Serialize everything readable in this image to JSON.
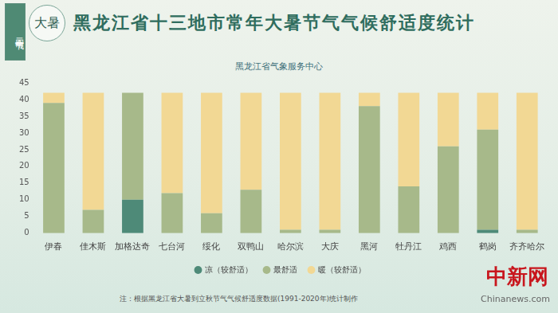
{
  "header": {
    "badge": "二十四节气",
    "season": "大暑",
    "source": "黑龙江省气象服务中心",
    "note": "注：根据黑龙江省大暑到立秋节气气候舒适度数据(1991-2020年)统计制作",
    "watermark": "中新网",
    "watermark_site": "Chinanews.com"
  },
  "chart_data": {
    "type": "bar",
    "title": "黑龙江省十三地市常年大暑节气气候舒适度统计",
    "categories": [
      "伊春",
      "佳木斯",
      "加格达奇",
      "七台河",
      "绥化",
      "双鸭山",
      "哈尔滨",
      "大庆",
      "黑河",
      "牡丹江",
      "鸡西",
      "鹤岗",
      "齐齐哈尔"
    ],
    "series": [
      {
        "name": "凉（较舒适）",
        "color": "#4e8a78",
        "values": [
          0,
          0,
          10,
          0,
          0,
          0,
          0,
          0,
          0,
          0,
          0,
          1,
          0
        ]
      },
      {
        "name": "最舒适",
        "color": "#a7b98a",
        "values": [
          39,
          7,
          32,
          12,
          6,
          13,
          1,
          1,
          38,
          14,
          26,
          30,
          1
        ]
      },
      {
        "name": "暖（较舒适）",
        "color": "#f2d894",
        "values": [
          3,
          35,
          0,
          30,
          36,
          29,
          41,
          41,
          4,
          28,
          16,
          11,
          41
        ]
      }
    ],
    "stacked": true,
    "ylim": [
      0,
      45
    ],
    "yticks": [
      0,
      5,
      10,
      15,
      20,
      25,
      30,
      35,
      40,
      45
    ],
    "grid": false,
    "legend": "bottom"
  }
}
